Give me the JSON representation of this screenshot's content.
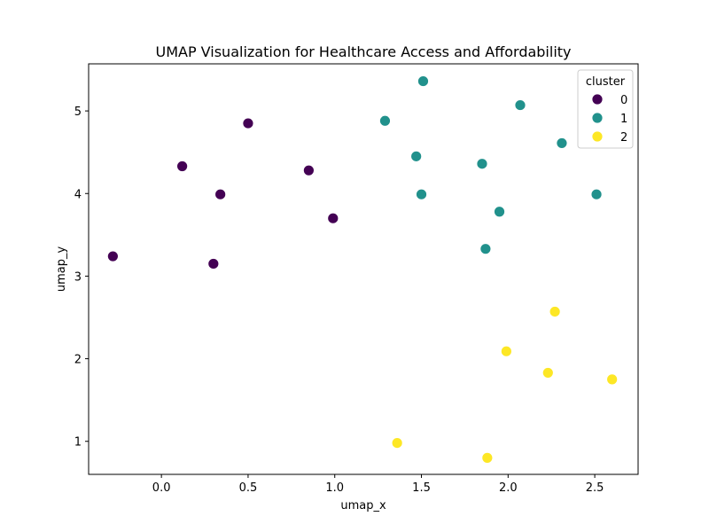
{
  "chart_data": {
    "type": "scatter",
    "title": "UMAP Visualization for Healthcare Access and Affordability",
    "xlabel": "umap_x",
    "ylabel": "umap_y",
    "xlim": [
      -0.42,
      2.75
    ],
    "ylim": [
      0.6,
      5.57
    ],
    "xticks": [
      0.0,
      0.5,
      1.0,
      1.5,
      2.0,
      2.5
    ],
    "xtick_labels": [
      "0.0",
      "0.5",
      "1.0",
      "1.5",
      "2.0",
      "2.5"
    ],
    "yticks": [
      1,
      2,
      3,
      4,
      5
    ],
    "ytick_labels": [
      "1",
      "2",
      "3",
      "4",
      "5"
    ],
    "grid": false,
    "legend": {
      "title": "cluster",
      "placement": "top-right"
    },
    "series": [
      {
        "name": "0",
        "color": "#440154",
        "points": [
          {
            "x": -0.28,
            "y": 3.24
          },
          {
            "x": 0.12,
            "y": 4.33
          },
          {
            "x": 0.3,
            "y": 3.15
          },
          {
            "x": 0.34,
            "y": 3.99
          },
          {
            "x": 0.5,
            "y": 4.85
          },
          {
            "x": 0.85,
            "y": 4.28
          },
          {
            "x": 0.99,
            "y": 3.7
          }
        ]
      },
      {
        "name": "1",
        "color": "#21918c",
        "points": [
          {
            "x": 1.29,
            "y": 4.88
          },
          {
            "x": 1.47,
            "y": 4.45
          },
          {
            "x": 1.5,
            "y": 3.99
          },
          {
            "x": 1.51,
            "y": 5.36
          },
          {
            "x": 1.85,
            "y": 4.36
          },
          {
            "x": 1.87,
            "y": 3.33
          },
          {
            "x": 1.95,
            "y": 3.78
          },
          {
            "x": 2.07,
            "y": 5.07
          },
          {
            "x": 2.31,
            "y": 4.61
          },
          {
            "x": 2.51,
            "y": 3.99
          }
        ]
      },
      {
        "name": "2",
        "color": "#fde725",
        "points": [
          {
            "x": 1.36,
            "y": 0.98
          },
          {
            "x": 1.88,
            "y": 0.8
          },
          {
            "x": 1.99,
            "y": 2.09
          },
          {
            "x": 2.23,
            "y": 1.83
          },
          {
            "x": 2.27,
            "y": 2.57
          },
          {
            "x": 2.6,
            "y": 1.75
          }
        ]
      }
    ]
  }
}
